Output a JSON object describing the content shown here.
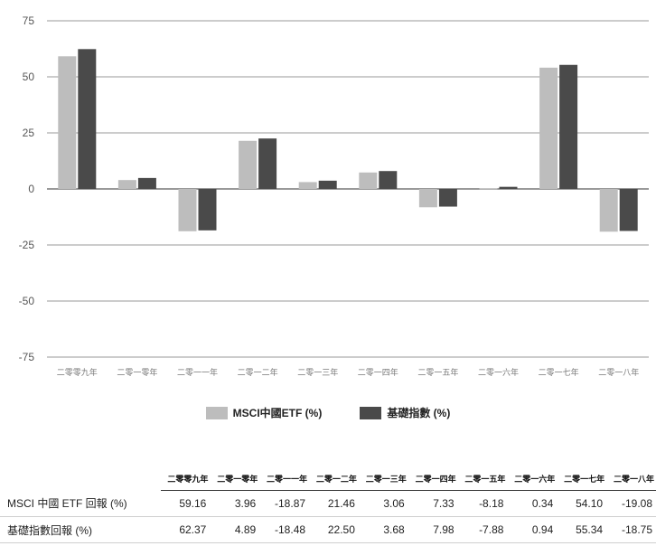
{
  "chart_data": {
    "type": "bar",
    "categories": [
      "二零零九年",
      "二零一零年",
      "二零一一年",
      "二零一二年",
      "二零一三年",
      "二零一四年",
      "二零一五年",
      "二零一六年",
      "二零一七年",
      "二零一八年"
    ],
    "series": [
      {
        "name": "MSCI中國ETF (%)",
        "color": "#bdbdbd",
        "values": [
          59.16,
          3.96,
          -18.87,
          21.46,
          3.06,
          7.33,
          -8.18,
          0.34,
          54.1,
          -19.08
        ]
      },
      {
        "name": "基礎指數 (%)",
        "color": "#4a4a4a",
        "values": [
          62.37,
          4.89,
          -18.48,
          22.5,
          3.68,
          7.98,
          -7.88,
          0.94,
          55.34,
          -18.75
        ]
      }
    ],
    "yticks": [
      "75",
      "50",
      "25",
      "0",
      "-25",
      "-50",
      "-75"
    ],
    "ylim": [
      -75,
      75
    ],
    "grid": true,
    "legend_position": "bottom"
  },
  "table": {
    "headers": [
      "二零零九年",
      "二零一零年",
      "二零一一年",
      "二零一二年",
      "二零一三年",
      "二零一四年",
      "二零一五年",
      "二零一六年",
      "二零一七年",
      "二零一八年"
    ],
    "rows": [
      {
        "label": "MSCI 中國 ETF 回報 (%)",
        "cells": [
          "59.16",
          "3.96",
          "-18.87",
          "21.46",
          "3.06",
          "7.33",
          "-8.18",
          "0.34",
          "54.10",
          "-19.08"
        ]
      },
      {
        "label": "基礎指數回報 (%)",
        "cells": [
          "62.37",
          "4.89",
          "-18.48",
          "22.50",
          "3.68",
          "7.98",
          "-7.88",
          "0.94",
          "55.34",
          "-18.75"
        ]
      }
    ]
  }
}
